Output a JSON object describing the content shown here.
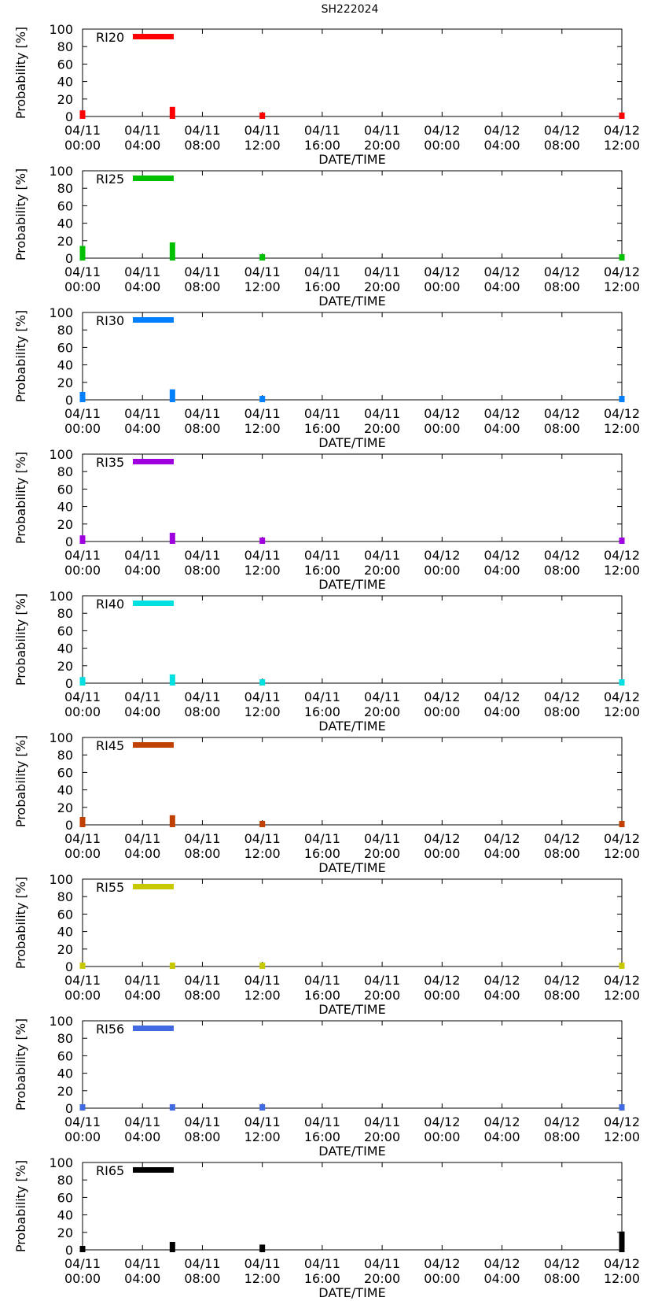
{
  "figure_title": "SH222024",
  "chart_data": [
    {
      "type": "bar",
      "series_name": "RI20",
      "color": "#ff0000",
      "ylabel": "Probability [%]",
      "xlabel": "DATE/TIME",
      "ylim": [
        0,
        100
      ],
      "x_hours": [
        0,
        6,
        12,
        36
      ],
      "values": [
        7,
        11,
        2,
        1
      ]
    },
    {
      "type": "bar",
      "series_name": "RI25",
      "color": "#00c000",
      "ylabel": "Probability [%]",
      "xlabel": "DATE/TIME",
      "ylim": [
        0,
        100
      ],
      "x_hours": [
        0,
        6,
        12,
        36
      ],
      "values": [
        14,
        18,
        4,
        3
      ]
    },
    {
      "type": "bar",
      "series_name": "RI30",
      "color": "#0080ff",
      "ylabel": "Probability [%]",
      "xlabel": "DATE/TIME",
      "ylim": [
        0,
        100
      ],
      "x_hours": [
        0,
        6,
        12,
        36
      ],
      "values": [
        9,
        12,
        3,
        2
      ]
    },
    {
      "type": "bar",
      "series_name": "RI35",
      "color": "#a000e0",
      "ylabel": "Probability [%]",
      "xlabel": "DATE/TIME",
      "ylim": [
        0,
        100
      ],
      "x_hours": [
        0,
        6,
        12,
        36
      ],
      "values": [
        7,
        10,
        2,
        1
      ]
    },
    {
      "type": "bar",
      "series_name": "RI40",
      "color": "#00e0e0",
      "ylabel": "Probability [%]",
      "xlabel": "DATE/TIME",
      "ylim": [
        0,
        100
      ],
      "x_hours": [
        0,
        6,
        12,
        36
      ],
      "values": [
        7,
        10,
        2,
        1
      ]
    },
    {
      "type": "bar",
      "series_name": "RI45",
      "color": "#c04000",
      "ylabel": "Probability [%]",
      "xlabel": "DATE/TIME",
      "ylim": [
        0,
        100
      ],
      "x_hours": [
        0,
        6,
        12,
        36
      ],
      "values": [
        9,
        11,
        2,
        2
      ]
    },
    {
      "type": "bar",
      "series_name": "RI55",
      "color": "#c8c800",
      "ylabel": "Probability [%]",
      "xlabel": "DATE/TIME",
      "ylim": [
        0,
        100
      ],
      "x_hours": [
        0,
        6,
        12,
        36
      ],
      "values": [
        2,
        3,
        1,
        1
      ]
    },
    {
      "type": "bar",
      "series_name": "RI56",
      "color": "#4169e1",
      "ylabel": "Probability [%]",
      "xlabel": "DATE/TIME",
      "ylim": [
        0,
        100
      ],
      "x_hours": [
        0,
        6,
        12,
        36
      ],
      "values": [
        3,
        4,
        2,
        4
      ]
    },
    {
      "type": "bar",
      "series_name": "RI65",
      "color": "#000000",
      "ylabel": "Probability [%]",
      "xlabel": "DATE/TIME",
      "ylim": [
        0,
        100
      ],
      "x_hours": [
        0,
        6,
        12,
        36
      ],
      "values": [
        4,
        9,
        6,
        21
      ]
    }
  ],
  "x_axis": {
    "range_hours": [
      0,
      36
    ],
    "tick_hours": [
      0,
      4,
      8,
      12,
      16,
      20,
      24,
      28,
      32,
      36
    ],
    "tick_dates": [
      "04/11",
      "04/11",
      "04/11",
      "04/11",
      "04/11",
      "04/11",
      "04/12",
      "04/12",
      "04/12",
      "04/12"
    ],
    "tick_times": [
      "00:00",
      "04:00",
      "08:00",
      "12:00",
      "16:00",
      "20:00",
      "00:00",
      "04:00",
      "08:00",
      "12:00"
    ]
  },
  "y_axis": {
    "ticks": [
      0,
      20,
      40,
      60,
      80,
      100
    ]
  }
}
